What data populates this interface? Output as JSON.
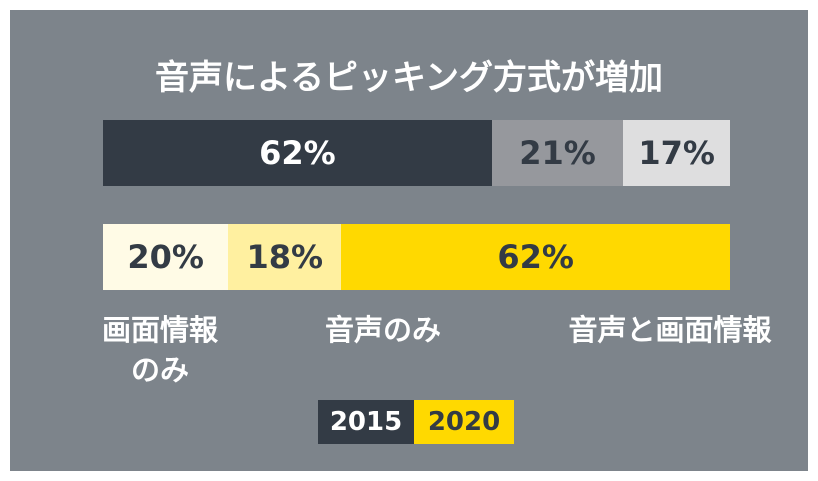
{
  "chart_data": {
    "type": "stacked-bar-100",
    "title": "音声によるピッキング方式が増加",
    "categories": [
      "画面情報のみ",
      "音声のみ",
      "音声と画面情報"
    ],
    "xlim": [
      0,
      100
    ],
    "series": [
      {
        "name": "2015",
        "color": "#333b45",
        "colors": [
          "#333b45",
          "#96989d",
          "#dededf"
        ],
        "values": [
          62,
          21,
          17
        ],
        "value_labels": [
          "62%",
          "21%",
          "17%"
        ]
      },
      {
        "name": "2020",
        "color": "#ffd900",
        "colors": [
          "#fffbe6",
          "#fff0a0",
          "#ffd900"
        ],
        "values": [
          20,
          18,
          62
        ],
        "value_labels": [
          "20%",
          "18%",
          "62%"
        ]
      }
    ]
  }
}
